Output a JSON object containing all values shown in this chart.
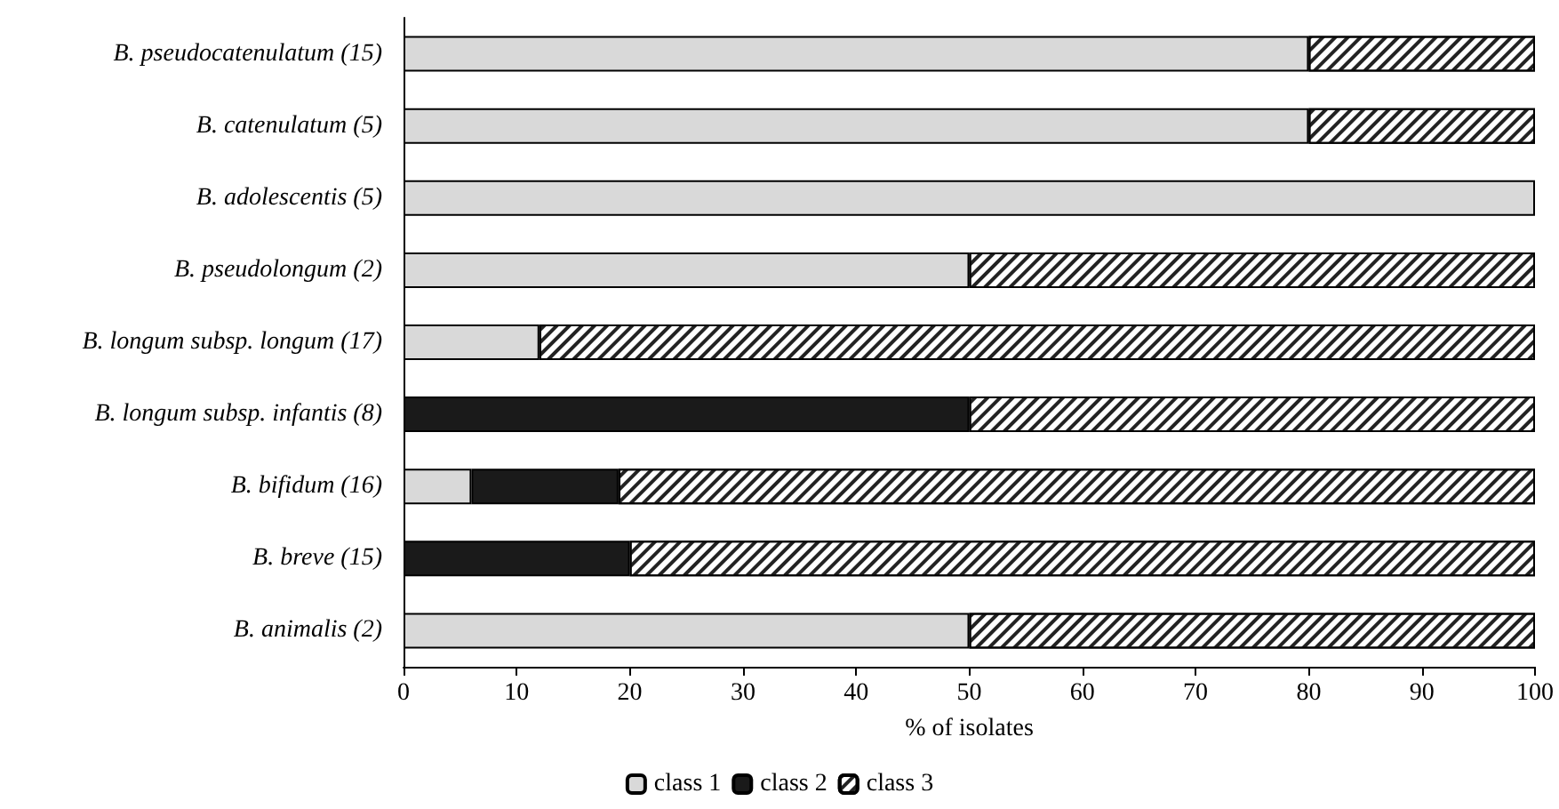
{
  "chart_data": {
    "type": "bar",
    "orientation": "horizontal",
    "stacked": true,
    "xlabel": "% of isolates",
    "categories": [
      "B. pseudocatenulatum (15)",
      "B. catenulatum (5)",
      "B. adolescentis (5)",
      "B. pseudolongum (2)",
      "B. longum subsp. longum (17)",
      "B. longum subsp. infantis (8)",
      "B. bifidum (16)",
      "B. breve (15)",
      "B. animalis (2)"
    ],
    "series": [
      {
        "name": "class 1",
        "color": "#d9d9d9",
        "values": [
          80,
          80,
          100,
          50,
          12,
          0,
          6,
          0,
          50
        ]
      },
      {
        "name": "class 2",
        "color": "#1a1a1a",
        "values": [
          0,
          0,
          0,
          0,
          0,
          50,
          13,
          20,
          0
        ]
      },
      {
        "name": "class 3",
        "color": "#ffffff",
        "values": [
          20,
          20,
          0,
          50,
          88,
          50,
          81,
          80,
          50
        ]
      }
    ],
    "xlim": [
      0,
      100
    ],
    "xticks": [
      0,
      10,
      20,
      30,
      40,
      50,
      60,
      70,
      80,
      90,
      100
    ],
    "grid": false,
    "legend": "bottom"
  }
}
